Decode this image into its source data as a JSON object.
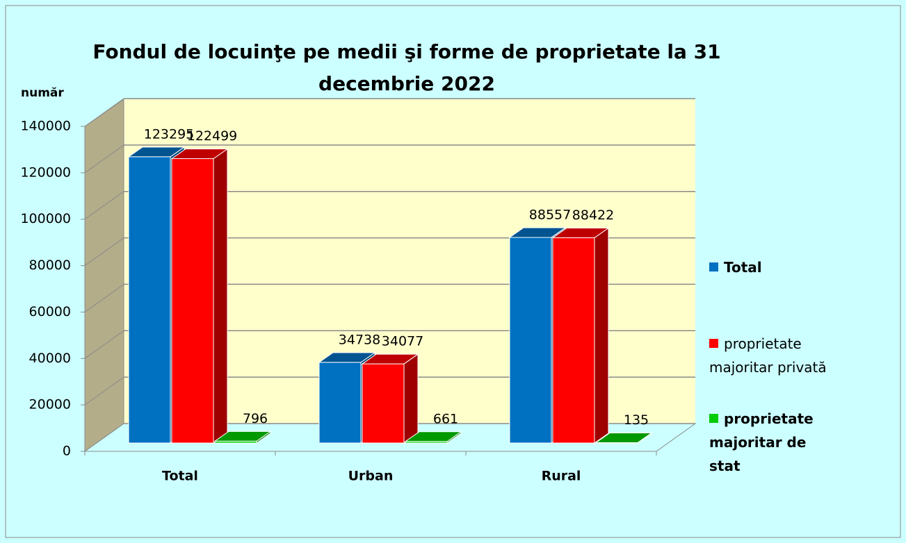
{
  "chart_data": {
    "type": "bar3d",
    "title": "Fondul de locuinţe pe medii şi forme de proprietate la 31 decembrie 2022",
    "y_label": "număr",
    "categories": [
      "Total",
      "Urban",
      "Rural"
    ],
    "series": [
      {
        "name": "Total",
        "color": "#0070c0",
        "values": [
          123295,
          34738,
          88557
        ]
      },
      {
        "name": "proprietate majoritar privată",
        "color": "#ff0000",
        "values": [
          122499,
          34077,
          88422
        ]
      },
      {
        "name": "proprietate majoritar de stat",
        "color": "#00cc00",
        "values": [
          796,
          661,
          135
        ]
      }
    ],
    "ylim": [
      0,
      140000
    ],
    "yticks": [
      0,
      20000,
      40000,
      60000,
      80000,
      100000,
      120000,
      140000
    ],
    "grid": true,
    "legend": "right"
  }
}
